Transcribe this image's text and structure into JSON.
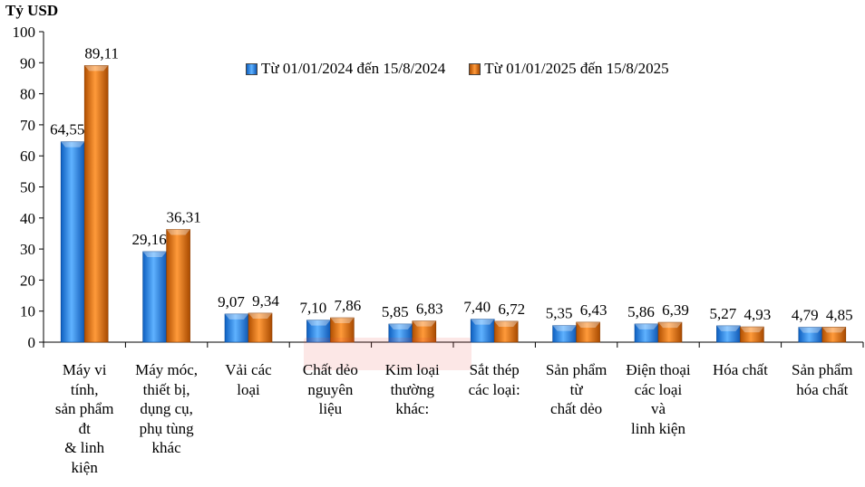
{
  "chart_data": {
    "type": "bar",
    "unit_label": "Tỷ USD",
    "ylim": [
      0,
      100
    ],
    "yticks": [
      0,
      10,
      20,
      30,
      40,
      50,
      60,
      70,
      80,
      90,
      100
    ],
    "grid": false,
    "legend_position": "top-right",
    "categories": [
      "Máy vi\ntính,\nsản phẩm\nđt\n& linh\nkiện",
      "Máy móc,\nthiết bị,\ndụng cụ,\nphụ tùng\nkhác",
      "Vải các\nloại",
      "Chất dẻo\nnguyên\nliệu",
      "Kim loại\nthường\nkhác:",
      "Sắt thép\ncác loại:",
      "Sản phẩm\ntừ\nchất dẻo",
      "Điện thoại\ncác loại\nvà\nlinh kiện",
      "Hóa chất",
      "Sản phẩm\nhóa chất"
    ],
    "series": [
      {
        "name": "Từ 01/01/2024 đến 15/8/2024",
        "color": "#2f8fe8",
        "values": [
          64.55,
          29.16,
          9.07,
          7.1,
          5.85,
          7.4,
          5.35,
          5.86,
          5.27,
          4.79
        ],
        "labels": [
          "64,55",
          "29,16",
          "9,07",
          "7,10",
          "5,85",
          "7,40",
          "5,35",
          "5,86",
          "5,27",
          "4,79"
        ]
      },
      {
        "name": "Từ 01/01/2025 đến 15/8/2025",
        "color": "#e87316",
        "values": [
          89.11,
          36.31,
          9.34,
          7.86,
          6.83,
          6.72,
          6.43,
          6.39,
          4.93,
          4.85
        ],
        "labels": [
          "89,11",
          "36,31",
          "9,34",
          "7,86",
          "6,83",
          "6,72",
          "6,43",
          "6,39",
          "4,93",
          "4,85"
        ]
      }
    ]
  }
}
